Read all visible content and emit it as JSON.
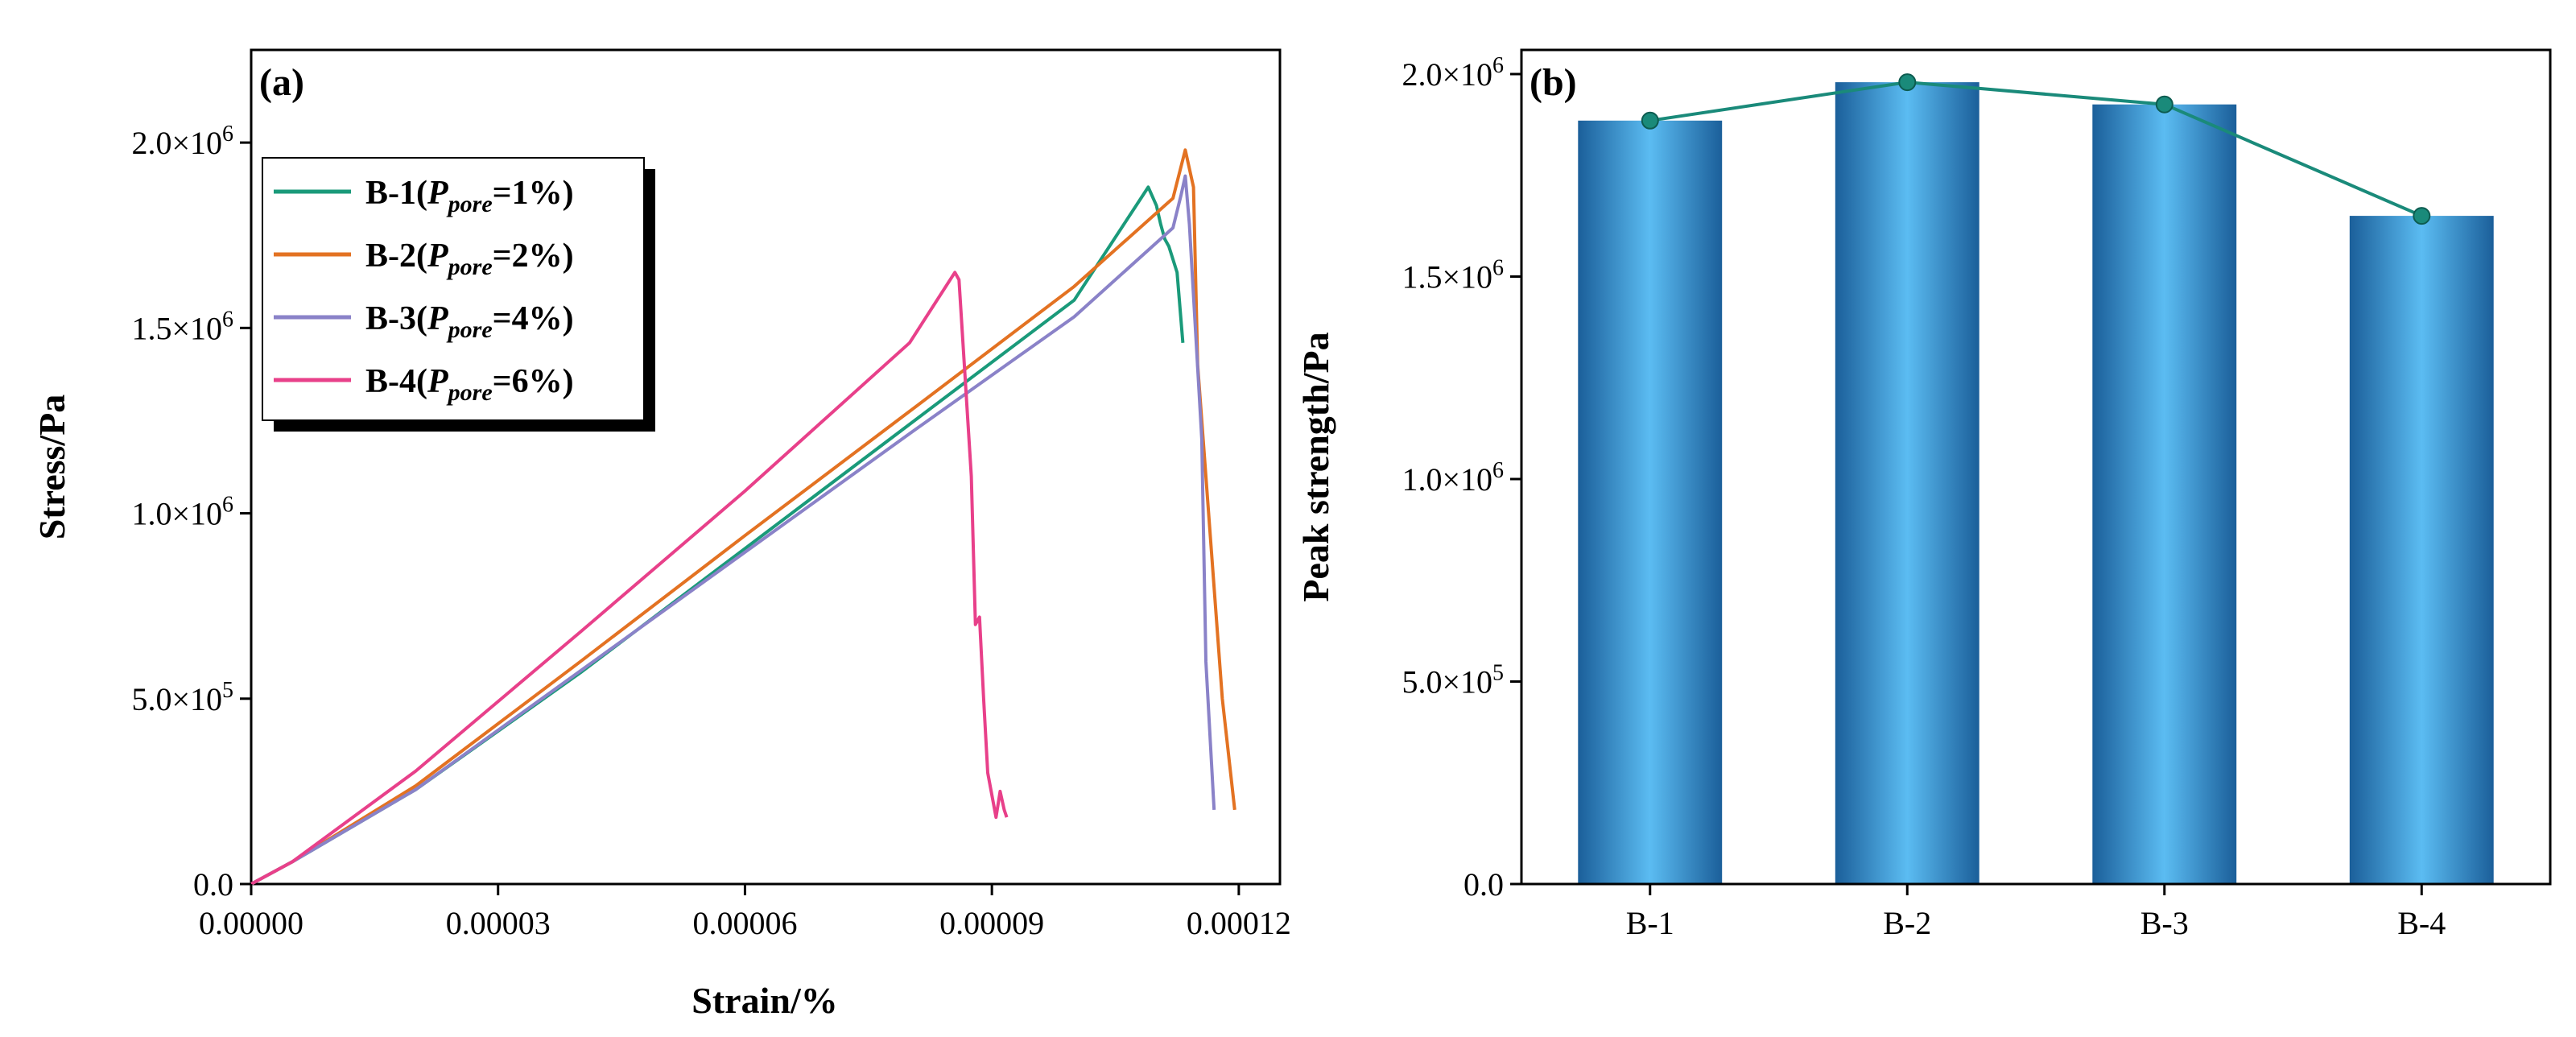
{
  "chart_data": [
    {
      "panel": "(a)",
      "type": "line",
      "xlabel": "Strain/%",
      "ylabel": "Stress/Pa",
      "xlim": [
        0,
        0.000125
      ],
      "ylim": [
        0,
        2250000
      ],
      "xticks": [
        0,
        3e-05,
        6e-05,
        9e-05,
        0.00012
      ],
      "xtick_labels": [
        "0.00000",
        "0.00003",
        "0.00006",
        "0.00009",
        "0.00012"
      ],
      "yticks": [
        0,
        500000,
        1000000,
        1500000,
        2000000
      ],
      "ytick_labels": [
        {
          "base": "0.0",
          "exp": ""
        },
        {
          "base": "5.0×10",
          "exp": "5"
        },
        {
          "base": "1.0×10",
          "exp": "6"
        },
        {
          "base": "1.5×10",
          "exp": "6"
        },
        {
          "base": "2.0×10",
          "exp": "6"
        }
      ],
      "legend": {
        "position": "top-left"
      },
      "series": [
        {
          "name": "B-1",
          "label_prefix": "B-1(",
          "label_var": "P",
          "label_sub": "pore",
          "label_suffix": "=1%)",
          "color": "#1a9a7a",
          "x": [
            0,
            5e-06,
            2e-05,
            4e-05,
            6e-05,
            8e-05,
            0.0001,
            0.000109,
            0.00011,
            0.0001105,
            0.000111,
            0.0001115,
            0.0001125,
            0.0001132
          ],
          "y": [
            0,
            60000,
            255000,
            570000,
            905000,
            1240000,
            1575000,
            1880000,
            1830000,
            1780000,
            1740000,
            1720000,
            1650000,
            1460000
          ]
        },
        {
          "name": "B-2",
          "label_prefix": "B-2(",
          "label_var": "P",
          "label_sub": "pore",
          "label_suffix": "=2%)",
          "color": "#e37222",
          "x": [
            0,
            5e-06,
            2e-05,
            4e-05,
            6e-05,
            8e-05,
            0.0001,
            0.000112,
            0.0001135,
            0.0001145,
            0.000115,
            0.0001165,
            0.000118,
            0.0001195
          ],
          "y": [
            0,
            60000,
            265000,
            600000,
            940000,
            1275000,
            1612000,
            1850000,
            1980000,
            1880000,
            1400000,
            950000,
            500000,
            200000
          ]
        },
        {
          "name": "B-3",
          "label_prefix": "B-3(",
          "label_var": "P",
          "label_sub": "pore",
          "label_suffix": "=4%)",
          "color": "#8a82c8",
          "x": [
            0,
            5e-06,
            2e-05,
            4e-05,
            6e-05,
            8e-05,
            0.0001,
            0.000112,
            0.000113,
            0.0001135,
            0.000114,
            0.0001155,
            0.000116,
            0.000117
          ],
          "y": [
            0,
            60000,
            255000,
            575000,
            895000,
            1215000,
            1530000,
            1770000,
            1860000,
            1910000,
            1780000,
            1200000,
            600000,
            200000
          ]
        },
        {
          "name": "B-4",
          "label_prefix": "B-4(",
          "label_var": "P",
          "label_sub": "pore",
          "label_suffix": "=6%)",
          "color": "#e8408a",
          "x": [
            0,
            5e-06,
            2e-05,
            4e-05,
            6e-05,
            8e-05,
            8.55e-05,
            8.6e-05,
            8.75e-05,
            8.8e-05,
            8.85e-05,
            8.9e-05,
            8.95e-05,
            9.05e-05,
            9.1e-05,
            9.15e-05,
            9.18e-05
          ],
          "y": [
            0,
            60000,
            305000,
            680000,
            1060000,
            1460000,
            1650000,
            1630000,
            1100000,
            700000,
            720000,
            500000,
            300000,
            180000,
            250000,
            200000,
            180000
          ]
        }
      ]
    },
    {
      "panel": "(b)",
      "type": "bar",
      "xlabel": "",
      "ylabel": "Peak strength/Pa",
      "categories": [
        "B-1",
        "B-2",
        "B-3",
        "B-4"
      ],
      "values": [
        1885000,
        1980000,
        1925000,
        1650000
      ],
      "ylim": [
        0,
        2000000
      ],
      "yticks": [
        0,
        500000,
        1000000,
        1500000,
        2000000
      ],
      "ytick_labels": [
        {
          "base": "0.0",
          "exp": ""
        },
        {
          "base": "5.0×10",
          "exp": "5"
        },
        {
          "base": "1.0×10",
          "exp": "6"
        },
        {
          "base": "1.5×10",
          "exp": "6"
        },
        {
          "base": "2.0×10",
          "exp": "6"
        }
      ],
      "bar_color_light": "#5bbcf2",
      "bar_color_dark": "#1b5f9a",
      "overlay_line_color": "#1a8a7a"
    }
  ]
}
